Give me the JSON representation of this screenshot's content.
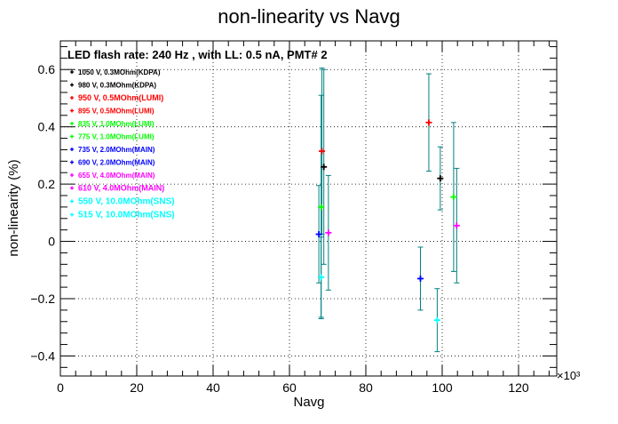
{
  "chart_data": {
    "type": "scatter",
    "title": "non-linearity vs Navg",
    "subtitle": "LED flash rate: 240 Hz , with LL: 0.5 nA, PMT# 2",
    "xlabel": "Navg",
    "ylabel": "non-linearity (%)",
    "x_multiplier_label": "×10³",
    "x_unit_factor": 1000,
    "xlim": [
      0,
      130
    ],
    "ylim": [
      -0.47,
      0.7
    ],
    "xticks": [
      0,
      20,
      40,
      60,
      80,
      100,
      120
    ],
    "yticks": [
      -0.4,
      -0.2,
      0,
      0.2,
      0.4,
      0.6
    ],
    "xtick_labels": [
      "0",
      "20",
      "40",
      "60",
      "80",
      "100",
      "120"
    ],
    "ytick_labels": [
      "−0.4",
      "−0.2",
      "0",
      "0.2",
      "0.4",
      "0.6"
    ],
    "grid": true,
    "legend_position": "top-left",
    "series": [
      {
        "name": "1050 V, 0.3MOhm(KDPA)",
        "color": "#000000",
        "points": []
      },
      {
        "name": "980 V, 0.3MOhm(KDPA)",
        "color": "#000000",
        "points": [
          {
            "x": 69.0,
            "y": 0.26,
            "yerr": 0.34
          }
        ]
      },
      {
        "name": "950 V, 0.5MOhm(LUMI)",
        "color": "#ff0000",
        "points": [
          {
            "x": 96.5,
            "y": 0.415,
            "yerr": 0.17
          }
        ]
      },
      {
        "name": "895 V, 0.5MOhm(LUMI)",
        "color": "#ff0000",
        "points": [
          {
            "x": 68.5,
            "y": 0.315,
            "yerr": 0.29
          }
        ]
      },
      {
        "name": "835 V, 1.0MOhm(LUMI)",
        "color": "#00ff00",
        "points": [
          {
            "x": 103.0,
            "y": 0.155,
            "yerr": 0.26
          }
        ]
      },
      {
        "name": "775 V, 1.0MOhm(LUMI)",
        "color": "#00ff00",
        "points": [
          {
            "x": 68.3,
            "y": 0.12,
            "yerr": 0.39
          }
        ]
      },
      {
        "name": "735 V, 2.0MOhm(MAIN)",
        "color": "#0000ff",
        "points": [
          {
            "x": 94.3,
            "y": -0.13,
            "yerr": 0.11
          }
        ]
      },
      {
        "name": "690 V, 2.0MOhm(MAIN)",
        "color": "#0000ff",
        "points": [
          {
            "x": 67.7,
            "y": 0.025,
            "yerr": 0.17
          }
        ]
      },
      {
        "name": "655 V, 4.0MOhm(MAIN)",
        "color": "#ff00ff",
        "points": [
          {
            "x": 103.8,
            "y": 0.055,
            "yerr": 0.2
          }
        ]
      },
      {
        "name": "610 V, 4.0MOhm(MAIN)",
        "color": "#ff00ff",
        "points": [
          {
            "x": 70.2,
            "y": 0.03,
            "yerr": 0.2
          }
        ]
      },
      {
        "name": "550 V, 10.0MOhm(SNS)",
        "color": "#00ffff",
        "points": [
          {
            "x": 98.7,
            "y": -0.275,
            "yerr": 0.11
          }
        ]
      },
      {
        "name": "515 V, 10.0MOhm(SNS)",
        "color": "#00ffff",
        "points": [
          {
            "x": 68.3,
            "y": -0.125,
            "yerr": 0.14
          }
        ]
      },
      {
        "name": "980 V, 0.3MOhm(KDPA)",
        "color": "#000000",
        "points": [
          {
            "x": 99.5,
            "y": 0.22,
            "yerr": 0.11
          }
        ]
      }
    ],
    "legend": [
      {
        "label": "1050 V, 0.3MOhm(KDPA)",
        "color": "#000000",
        "size": "small"
      },
      {
        "label": "980 V, 0.3MOhm(KDPA)",
        "color": "#000000",
        "size": "small"
      },
      {
        "label": "950 V, 0.5MOhm(LUMI)",
        "color": "#ff0000",
        "size": "medium"
      },
      {
        "label": "895 V, 0.5MOhm(LUMI)",
        "color": "#ff0000",
        "size": "small"
      },
      {
        "label": "835 V, 1.0MOhm(LUMI)",
        "color": "#00ff00",
        "size": "small"
      },
      {
        "label": "775 V, 1.0MOhm(LUMI)",
        "color": "#00ff00",
        "size": "small"
      },
      {
        "label": "735 V, 2.0MOhm(MAIN)",
        "color": "#0000ff",
        "size": "small"
      },
      {
        "label": "690 V, 2.0MOhm(MAIN)",
        "color": "#0000ff",
        "size": "small"
      },
      {
        "label": "655 V, 4.0MOhm(MAIN)",
        "color": "#ff00ff",
        "size": "small"
      },
      {
        "label": "610 V, 4.0MOhm(MAIN)",
        "color": "#ff00ff",
        "size": "medium"
      },
      {
        "label": "550 V, 10.0MOhm(SNS)",
        "color": "#00ffff",
        "size": "large"
      },
      {
        "label": "515 V, 10.0MOhm(SNS)",
        "color": "#00ffff",
        "size": "large"
      }
    ],
    "error_bar_color": "#008080"
  }
}
